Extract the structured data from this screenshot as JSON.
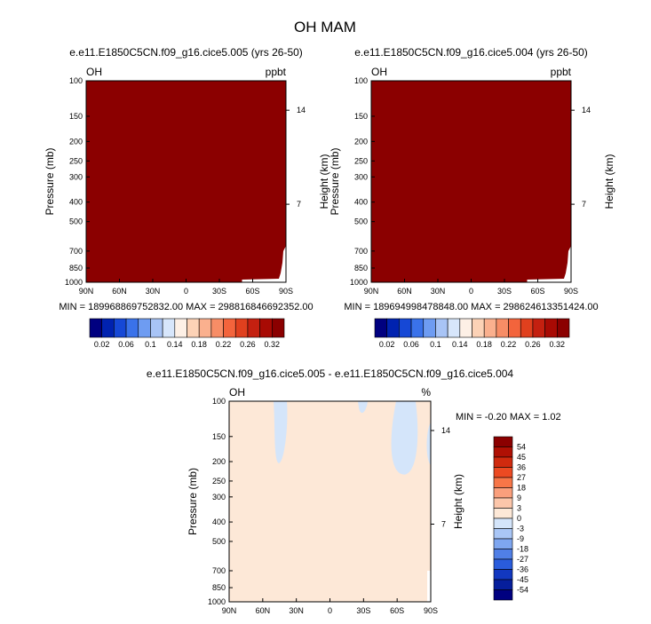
{
  "title": "OH MAM",
  "chart_data": [
    {
      "type": "heatmap",
      "title": "e.e11.E1850C5CN.f09_g16.cice5.005 (yrs 26-50)",
      "left_label": "OH",
      "right_label": "ppbt",
      "ylabel": "Pressure (mb)",
      "ylabel_right": "Height (km)",
      "xticks": [
        "90N",
        "60N",
        "30N",
        "0",
        "30S",
        "60S",
        "90S"
      ],
      "yticks": [
        "100",
        "150",
        "200",
        "250",
        "300",
        "400",
        "500",
        "700",
        "850",
        "1000"
      ],
      "yticks_right": [
        "14",
        "7"
      ],
      "ylim": [
        1000,
        100
      ],
      "fill_color": "#8b0000",
      "stats": "MIN = 189968869752832.00   MAX = 298816846692352.00"
    },
    {
      "type": "heatmap",
      "title": "e.e11.E1850C5CN.f09_g16.cice5.004 (yrs 26-50)",
      "left_label": "OH",
      "right_label": "ppbt",
      "ylabel": "Pressure (mb)",
      "ylabel_right": "Height (km)",
      "xticks": [
        "90N",
        "60N",
        "30N",
        "0",
        "30S",
        "60S",
        "90S"
      ],
      "yticks": [
        "100",
        "150",
        "200",
        "250",
        "300",
        "400",
        "500",
        "700",
        "850",
        "1000"
      ],
      "yticks_right": [
        "14",
        "7"
      ],
      "ylim": [
        1000,
        100
      ],
      "fill_color": "#8b0000",
      "stats": "MIN = 189694998478848.00   MAX = 298624613351424.00"
    },
    {
      "type": "heatmap",
      "title": "e.e11.E1850C5CN.f09_g16.cice5.005 - e.e11.E1850C5CN.f09_g16.cice5.004",
      "left_label": "OH",
      "right_label": "%",
      "ylabel": "Pressure (mb)",
      "ylabel_right": "Height (km)",
      "xticks": [
        "90N",
        "60N",
        "30N",
        "0",
        "30S",
        "60S",
        "90S"
      ],
      "yticks": [
        "100",
        "150",
        "200",
        "250",
        "300",
        "400",
        "500",
        "700",
        "850",
        "1000"
      ],
      "yticks_right": [
        "14",
        "7"
      ],
      "ylim": [
        1000,
        100
      ],
      "fill_color": "#fde8d7",
      "stats": "MIN =  -0.20   MAX =   1.02"
    }
  ],
  "colorbar_top": {
    "labels": [
      "0.02",
      "0.06",
      "0.1",
      "0.14",
      "0.18",
      "0.22",
      "0.26",
      "0.32"
    ],
    "colors": [
      "#000080",
      "#0022b0",
      "#1648d6",
      "#3a72ea",
      "#6e9cf2",
      "#a8c4f6",
      "#d7e6fb",
      "#fdf0e6",
      "#fcd2b6",
      "#fab08e",
      "#f78d66",
      "#f3643c",
      "#e0401e",
      "#c42010",
      "#a80a04",
      "#8b0000"
    ]
  },
  "colorbar_diff": {
    "labels": [
      "54",
      "45",
      "36",
      "27",
      "18",
      "9",
      "3",
      "0",
      "-3",
      "-9",
      "-18",
      "-27",
      "-36",
      "-45",
      "-54"
    ],
    "colors": [
      "#8b0000",
      "#b01004",
      "#d02a0e",
      "#ec4a22",
      "#f77648",
      "#fa9f7c",
      "#fcc6aa",
      "#fde8d7",
      "#d4e5fa",
      "#a9c6f6",
      "#7ea6f0",
      "#507fe6",
      "#2a5cdc",
      "#1238c0",
      "#061e9c",
      "#000080"
    ]
  }
}
